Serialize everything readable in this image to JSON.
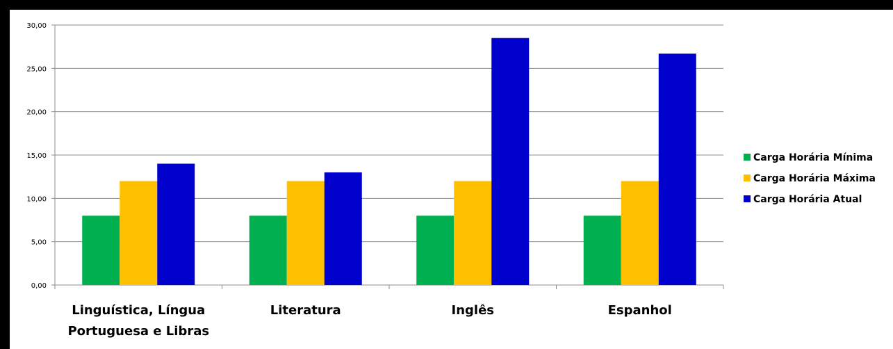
{
  "chart_data": {
    "type": "bar",
    "categories": [
      [
        "Linguística, Língua",
        "Portuguesa e Libras"
      ],
      [
        "Literatura"
      ],
      [
        "Inglês"
      ],
      [
        "Espanhol"
      ]
    ],
    "series": [
      {
        "name": "Carga Horária Mínima",
        "color": "#00B050",
        "values": [
          8,
          8,
          8,
          8
        ]
      },
      {
        "name": "Carga Horária Máxima",
        "color": "#FFC000",
        "values": [
          12,
          12,
          12,
          12
        ]
      },
      {
        "name": "Carga Horária Atual",
        "color": "#0000CC",
        "values": [
          14,
          13,
          28.5,
          26.7
        ]
      }
    ],
    "yticks": [
      "0,00",
      "5,00",
      "10,00",
      "15,00",
      "20,00",
      "25,00",
      "30,00"
    ],
    "ylim": [
      0,
      30
    ],
    "grid": true,
    "legend_position": "right"
  }
}
